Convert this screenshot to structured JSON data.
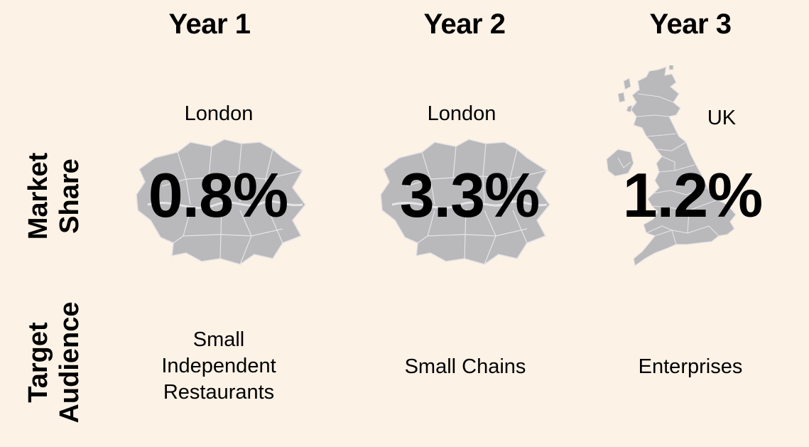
{
  "columns": [
    {
      "year": "Year 1",
      "region": "London",
      "share": "0.8%",
      "audience": [
        "Small",
        "Independent",
        "Restaurants"
      ]
    },
    {
      "year": "Year 2",
      "region": "London",
      "share": "3.3%",
      "audience": [
        "Small Chains"
      ]
    },
    {
      "year": "Year 3",
      "region": "UK",
      "share": "1.2%",
      "audience": [
        "Enterprises"
      ]
    }
  ],
  "rows": {
    "market_share": [
      "Market",
      "Share"
    ],
    "target_audience": [
      "Target",
      "Audience"
    ]
  },
  "colors": {
    "background": "#fdf2e6",
    "map_fill": "#b9b8ba",
    "map_lines": "#e6e4e6",
    "text": "#000000"
  }
}
